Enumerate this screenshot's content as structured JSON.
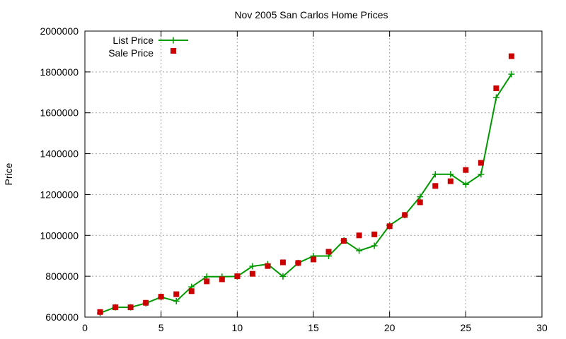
{
  "chart_data": {
    "type": "line",
    "title": "Nov 2005 San Carlos Home Prices",
    "xlabel": "",
    "ylabel": "Price",
    "xlim": [
      0,
      30
    ],
    "ylim": [
      600000,
      2000000
    ],
    "x_ticks": [
      0,
      5,
      10,
      15,
      20,
      25,
      30
    ],
    "y_ticks": [
      600000,
      800000,
      1000000,
      1200000,
      1400000,
      1600000,
      1800000,
      2000000
    ],
    "x_tick_labels": [
      "0",
      "5",
      "10",
      "15",
      "20",
      "25",
      "30"
    ],
    "y_tick_labels": [
      "600000",
      "800000",
      "1000000",
      "1200000",
      "1400000",
      "1600000",
      "1800000",
      "2000000"
    ],
    "grid": true,
    "legend_position": "top-left",
    "series": [
      {
        "name": "List Price",
        "style": "line-with-plus",
        "color": "#009900",
        "x": [
          1,
          2,
          3,
          4,
          5,
          6,
          7,
          8,
          9,
          10,
          11,
          12,
          13,
          14,
          15,
          16,
          17,
          18,
          19,
          20,
          21,
          22,
          23,
          24,
          25,
          26,
          27,
          28
        ],
        "y": [
          620000,
          648000,
          648000,
          668000,
          698000,
          678000,
          748000,
          798000,
          798000,
          799000,
          849000,
          859000,
          799000,
          865000,
          899000,
          899000,
          975000,
          925000,
          949000,
          1049000,
          1099000,
          1189000,
          1299000,
          1299000,
          1249000,
          1299000,
          1675000,
          1789000
        ]
      },
      {
        "name": "Sale Price",
        "style": "square-markers",
        "color": "#cc0000",
        "x": [
          1,
          2,
          3,
          4,
          5,
          6,
          7,
          8,
          9,
          10,
          11,
          12,
          13,
          14,
          15,
          16,
          17,
          18,
          19,
          20,
          21,
          22,
          23,
          24,
          25,
          26,
          27,
          28
        ],
        "y": [
          625000,
          648000,
          648000,
          670000,
          700000,
          712000,
          727000,
          775000,
          785000,
          800000,
          812000,
          850000,
          868000,
          865000,
          882000,
          920000,
          973000,
          1000000,
          1005000,
          1045000,
          1100000,
          1162000,
          1242000,
          1265000,
          1320000,
          1355000,
          1720000,
          1877000
        ]
      }
    ]
  }
}
